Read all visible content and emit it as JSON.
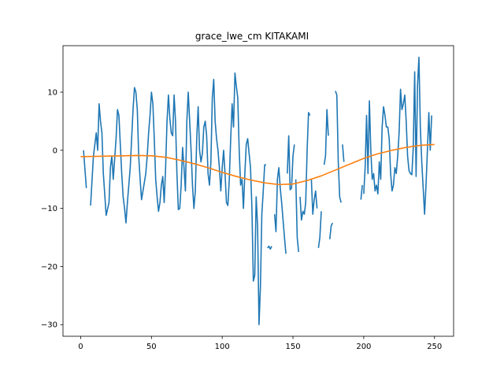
{
  "chart_data": {
    "type": "line",
    "title": "grace_lwe_cm KITAKAMI",
    "xlabel": "",
    "ylabel": "",
    "xlim": [
      -12.5,
      263.5
    ],
    "ylim": [
      -32,
      18
    ],
    "xticks": [
      0,
      50,
      100,
      150,
      200,
      250
    ],
    "yticks": [
      -30,
      -20,
      -10,
      0,
      10
    ],
    "xtick_labels": [
      "0",
      "50",
      "100",
      "150",
      "200",
      "250"
    ],
    "ytick_labels": [
      "−30",
      "−20",
      "−10",
      "0",
      "10"
    ],
    "grid": false,
    "series": [
      {
        "color": "#1f77b4",
        "segments": [
          [
            [
              2,
              0
            ],
            [
              4,
              -6.5
            ]
          ],
          [
            [
              7,
              -9.5
            ],
            [
              9,
              -1
            ],
            [
              11,
              3
            ],
            [
              12,
              0
            ],
            [
              13,
              8
            ],
            [
              14,
              5
            ],
            [
              15,
              3
            ],
            [
              16,
              -4
            ],
            [
              18,
              -11.2
            ],
            [
              20,
              -9
            ],
            [
              21,
              -3
            ],
            [
              22,
              -1
            ],
            [
              23,
              -5
            ],
            [
              25,
              2
            ],
            [
              26,
              7
            ],
            [
              27,
              6
            ],
            [
              28,
              1
            ],
            [
              29,
              -4
            ],
            [
              30,
              -8
            ],
            [
              31,
              -10
            ],
            [
              32,
              -12.5
            ],
            [
              33,
              -9
            ],
            [
              35,
              -3
            ],
            [
              36,
              2
            ],
            [
              37,
              7
            ],
            [
              38,
              10.8
            ],
            [
              39,
              10
            ],
            [
              40,
              7
            ],
            [
              41,
              -1
            ],
            [
              42,
              -5
            ],
            [
              43,
              -8.5
            ],
            [
              44,
              -7
            ],
            [
              46,
              -4
            ],
            [
              47,
              -1
            ],
            [
              48,
              3
            ],
            [
              49,
              6
            ],
            [
              50,
              10
            ],
            [
              51,
              8
            ],
            [
              52,
              2
            ],
            [
              53,
              -5
            ],
            [
              54,
              -8
            ],
            [
              55,
              -10.5
            ],
            [
              56,
              -9
            ],
            [
              57,
              -6
            ],
            [
              58,
              -4.5
            ],
            [
              59,
              -9
            ],
            [
              60,
              -3
            ],
            [
              61,
              5
            ],
            [
              62,
              9.5
            ],
            [
              63,
              5.5
            ],
            [
              64,
              3
            ],
            [
              65,
              2.5
            ],
            [
              66,
              9.5
            ],
            [
              67,
              5
            ],
            [
              68,
              -4
            ],
            [
              69,
              -10.2
            ],
            [
              70,
              -10
            ],
            [
              71,
              -6
            ],
            [
              72,
              0.5
            ],
            [
              73,
              -3
            ],
            [
              74,
              -7
            ],
            [
              75,
              5
            ],
            [
              76,
              10
            ],
            [
              77,
              5
            ],
            [
              78,
              0
            ],
            [
              79,
              -6
            ],
            [
              80,
              -10
            ],
            [
              81,
              -7
            ],
            [
              82,
              2
            ],
            [
              83,
              7.5
            ],
            [
              84,
              0
            ],
            [
              85,
              -2
            ],
            [
              86,
              -0.5
            ],
            [
              87,
              4
            ],
            [
              88,
              5
            ],
            [
              89,
              2.5
            ],
            [
              90,
              -4
            ],
            [
              91,
              -6
            ],
            [
              92,
              -2
            ],
            [
              93,
              9
            ],
            [
              94,
              12.2
            ],
            [
              95,
              5
            ],
            [
              96,
              2
            ],
            [
              97,
              0
            ],
            [
              98,
              -3
            ],
            [
              99,
              -7
            ],
            [
              100,
              -3
            ],
            [
              101,
              0
            ],
            [
              102,
              -4
            ],
            [
              103,
              -9
            ],
            [
              104,
              -9.5
            ],
            [
              105,
              -5
            ],
            [
              106,
              2
            ],
            [
              107,
              8
            ],
            [
              108,
              4
            ],
            [
              109,
              13.3
            ],
            [
              110,
              11
            ],
            [
              111,
              9
            ],
            [
              112,
              0
            ],
            [
              113,
              -6
            ],
            [
              114,
              -5
            ],
            [
              115,
              -10
            ],
            [
              116,
              -4
            ],
            [
              117,
              1
            ],
            [
              118,
              2
            ],
            [
              119,
              -0.5
            ],
            [
              120,
              -3
            ],
            [
              121,
              -10
            ],
            [
              122,
              -22.5
            ],
            [
              123,
              -21.5
            ],
            [
              124,
              -8
            ],
            [
              125,
              -13
            ],
            [
              126,
              -30
            ],
            [
              127,
              -23.5
            ],
            [
              128,
              -11
            ],
            [
              129,
              -7
            ],
            [
              130,
              -2.5
            ],
            [
              131,
              -2.5
            ]
          ],
          [
            [
              132,
              -16.8
            ],
            [
              133,
              -16.5
            ],
            [
              134,
              -17
            ],
            [
              135,
              -16.5
            ]
          ],
          [
            [
              137,
              -11
            ],
            [
              138,
              -14
            ],
            [
              139,
              -5
            ],
            [
              140,
              -3
            ],
            [
              141,
              -6.5
            ],
            [
              142,
              -9
            ],
            [
              143,
              -12
            ],
            [
              144,
              -15
            ],
            [
              145,
              -17.8
            ]
          ],
          [
            [
              146,
              -4
            ],
            [
              147,
              2.5
            ],
            [
              148,
              -6.8
            ],
            [
              149,
              -6.5
            ],
            [
              150,
              -1
            ],
            [
              151,
              1
            ]
          ],
          [
            [
              152,
              -5
            ],
            [
              153,
              -15
            ],
            [
              154,
              -17.5
            ]
          ],
          [
            [
              155,
              -8
            ],
            [
              156,
              -12
            ],
            [
              157,
              -10.5
            ],
            [
              158,
              -11
            ],
            [
              159,
              -9
            ],
            [
              160,
              0
            ],
            [
              161,
              6.5
            ],
            [
              162,
              6
            ]
          ],
          [
            [
              163,
              -5
            ],
            [
              164,
              -11
            ],
            [
              165,
              -8.5
            ],
            [
              166,
              -7
            ],
            [
              167,
              -10
            ]
          ],
          [
            [
              168,
              -16.8
            ],
            [
              169,
              -15
            ],
            [
              170,
              -10.5
            ]
          ],
          [
            [
              172,
              -2.5
            ],
            [
              173,
              -1
            ],
            [
              174,
              7
            ],
            [
              175,
              2.5
            ]
          ],
          [
            [
              176,
              -15.3
            ],
            [
              177,
              -13
            ],
            [
              178,
              -12.5
            ]
          ],
          [
            [
              180,
              10.2
            ],
            [
              181,
              9.5
            ],
            [
              182,
              -2
            ],
            [
              183,
              -8
            ],
            [
              184,
              -9
            ]
          ],
          [
            [
              185,
              1
            ],
            [
              186,
              -2
            ]
          ],
          [
            [
              198,
              -8.5
            ],
            [
              199,
              -6
            ]
          ],
          [
            [
              200,
              -7.5
            ],
            [
              201,
              -3
            ],
            [
              202,
              6
            ],
            [
              203,
              -4
            ],
            [
              204,
              8.5
            ],
            [
              205,
              0
            ],
            [
              206,
              -5
            ],
            [
              207,
              -4
            ],
            [
              208,
              -7
            ],
            [
              209,
              -6
            ],
            [
              210,
              -7.5
            ],
            [
              211,
              -2
            ],
            [
              212,
              -5
            ],
            [
              213,
              4
            ],
            [
              214,
              7.5
            ],
            [
              215,
              6
            ],
            [
              216,
              4
            ],
            [
              217,
              4
            ],
            [
              218,
              2
            ],
            [
              219,
              -4
            ],
            [
              220,
              -7
            ],
            [
              221,
              -6
            ],
            [
              222,
              -3
            ],
            [
              223,
              -4
            ],
            [
              224,
              -1
            ],
            [
              225,
              3
            ],
            [
              226,
              10.5
            ],
            [
              227,
              7
            ],
            [
              228,
              8
            ],
            [
              229,
              9.5
            ],
            [
              230,
              5
            ],
            [
              231,
              -1
            ],
            [
              232,
              -3.5
            ],
            [
              233,
              -4
            ],
            [
              234,
              -4.2
            ],
            [
              235,
              0.5
            ],
            [
              236,
              13.5
            ],
            [
              237,
              -4.5
            ],
            [
              238,
              11
            ],
            [
              239,
              16
            ],
            [
              240,
              4
            ],
            [
              241,
              -2
            ],
            [
              242,
              -6.5
            ],
            [
              243,
              -11
            ],
            [
              244,
              -6
            ],
            [
              245,
              0
            ],
            [
              246,
              6.5
            ],
            [
              247,
              0
            ],
            [
              248,
              6
            ]
          ]
        ]
      },
      {
        "color": "#ff7f0e",
        "segments": [
          [
            [
              0,
              -1.1
            ],
            [
              10,
              -1.05
            ],
            [
              20,
              -1
            ],
            [
              30,
              -0.95
            ],
            [
              40,
              -0.9
            ],
            [
              50,
              -0.95
            ],
            [
              60,
              -1.2
            ],
            [
              70,
              -1.7
            ],
            [
              80,
              -2.3
            ],
            [
              90,
              -3
            ],
            [
              100,
              -3.8
            ],
            [
              110,
              -4.5
            ],
            [
              120,
              -5.1
            ],
            [
              130,
              -5.6
            ],
            [
              140,
              -5.9
            ],
            [
              150,
              -5.8
            ],
            [
              160,
              -5.2
            ],
            [
              170,
              -4.4
            ],
            [
              180,
              -3.4
            ],
            [
              190,
              -2.4
            ],
            [
              200,
              -1.4
            ],
            [
              210,
              -0.6
            ],
            [
              220,
              0
            ],
            [
              230,
              0.5
            ],
            [
              240,
              0.85
            ],
            [
              250,
              1
            ]
          ]
        ]
      }
    ]
  }
}
